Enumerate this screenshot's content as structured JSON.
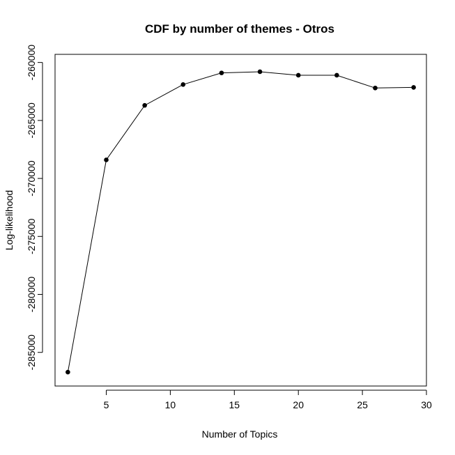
{
  "chart_data": {
    "type": "line",
    "title": "CDF by number of themes - Otros",
    "xlabel": "Number of Topics",
    "ylabel": "Log-likelihood",
    "x": [
      2,
      5,
      8,
      11,
      14,
      17,
      20,
      23,
      26,
      29
    ],
    "series": [
      {
        "values": [
          -286700,
          -268400,
          -263700,
          -261900,
          -260900,
          -260800,
          -261100,
          -261100,
          -262200,
          -262150
        ]
      }
    ],
    "xticks": [
      5,
      10,
      15,
      20,
      25,
      30
    ],
    "yticks": [
      -285000,
      -280000,
      -275000,
      -270000,
      -265000,
      -260000
    ],
    "xlim": [
      1,
      30
    ],
    "ylim": [
      -287900,
      -259300
    ],
    "grid": false,
    "legend": "none",
    "markers": "filled-circle",
    "line_color": "#000000"
  }
}
